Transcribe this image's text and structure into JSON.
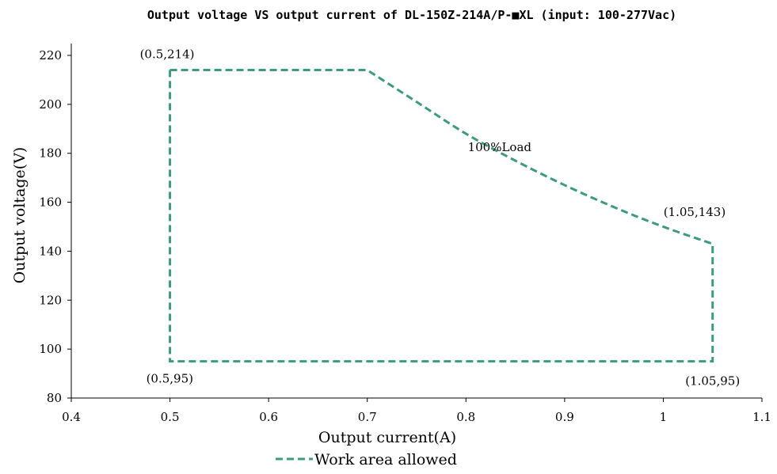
{
  "chart_data": {
    "type": "line",
    "title": "Output voltage VS output current of DL-150Z-214A/P-■XL (input: 100-277Vac)",
    "xlabel": "Output current(A)",
    "ylabel": "Output voltage(V)",
    "xlim": [
      0.4,
      1.1
    ],
    "ylim": [
      80,
      220
    ],
    "x_ticks": [
      0.4,
      0.5,
      0.6,
      0.7,
      0.8,
      0.9,
      1,
      1.1
    ],
    "x_tick_labels": [
      "0.4",
      "0.5",
      "0.6",
      "0.7",
      "0.8",
      "0.9",
      "1",
      "1.1"
    ],
    "y_ticks": [
      80,
      100,
      120,
      140,
      160,
      180,
      200,
      220
    ],
    "y_tick_labels": [
      "80",
      "100",
      "120",
      "140",
      "160",
      "180",
      "200",
      "220"
    ],
    "grid": false,
    "legend_position": "bottom",
    "series": [
      {
        "name": "Work area allowed",
        "color": "#3a9c7a",
        "style": "dashed",
        "x": [
          0.5,
          0.7,
          0.75,
          0.8,
          0.85,
          0.9,
          0.95,
          1.0,
          1.05,
          1.05,
          0.5,
          0.5
        ],
        "y": [
          214,
          214,
          201,
          188,
          177,
          167,
          158,
          150,
          143,
          95,
          95,
          214
        ]
      }
    ],
    "annotations": [
      {
        "text": "(0.5,214)",
        "x": 0.5,
        "y": 214,
        "anchor": "above-left"
      },
      {
        "text": "100%Load",
        "x": 0.85,
        "y": 177,
        "anchor": "above-right"
      },
      {
        "text": "(1.05,143)",
        "x": 1.05,
        "y": 143,
        "anchor": "above-left"
      },
      {
        "text": "(0.5,95)",
        "x": 0.5,
        "y": 95,
        "anchor": "below-right"
      },
      {
        "text": "(1.05,95)",
        "x": 1.05,
        "y": 95,
        "anchor": "below"
      }
    ]
  }
}
